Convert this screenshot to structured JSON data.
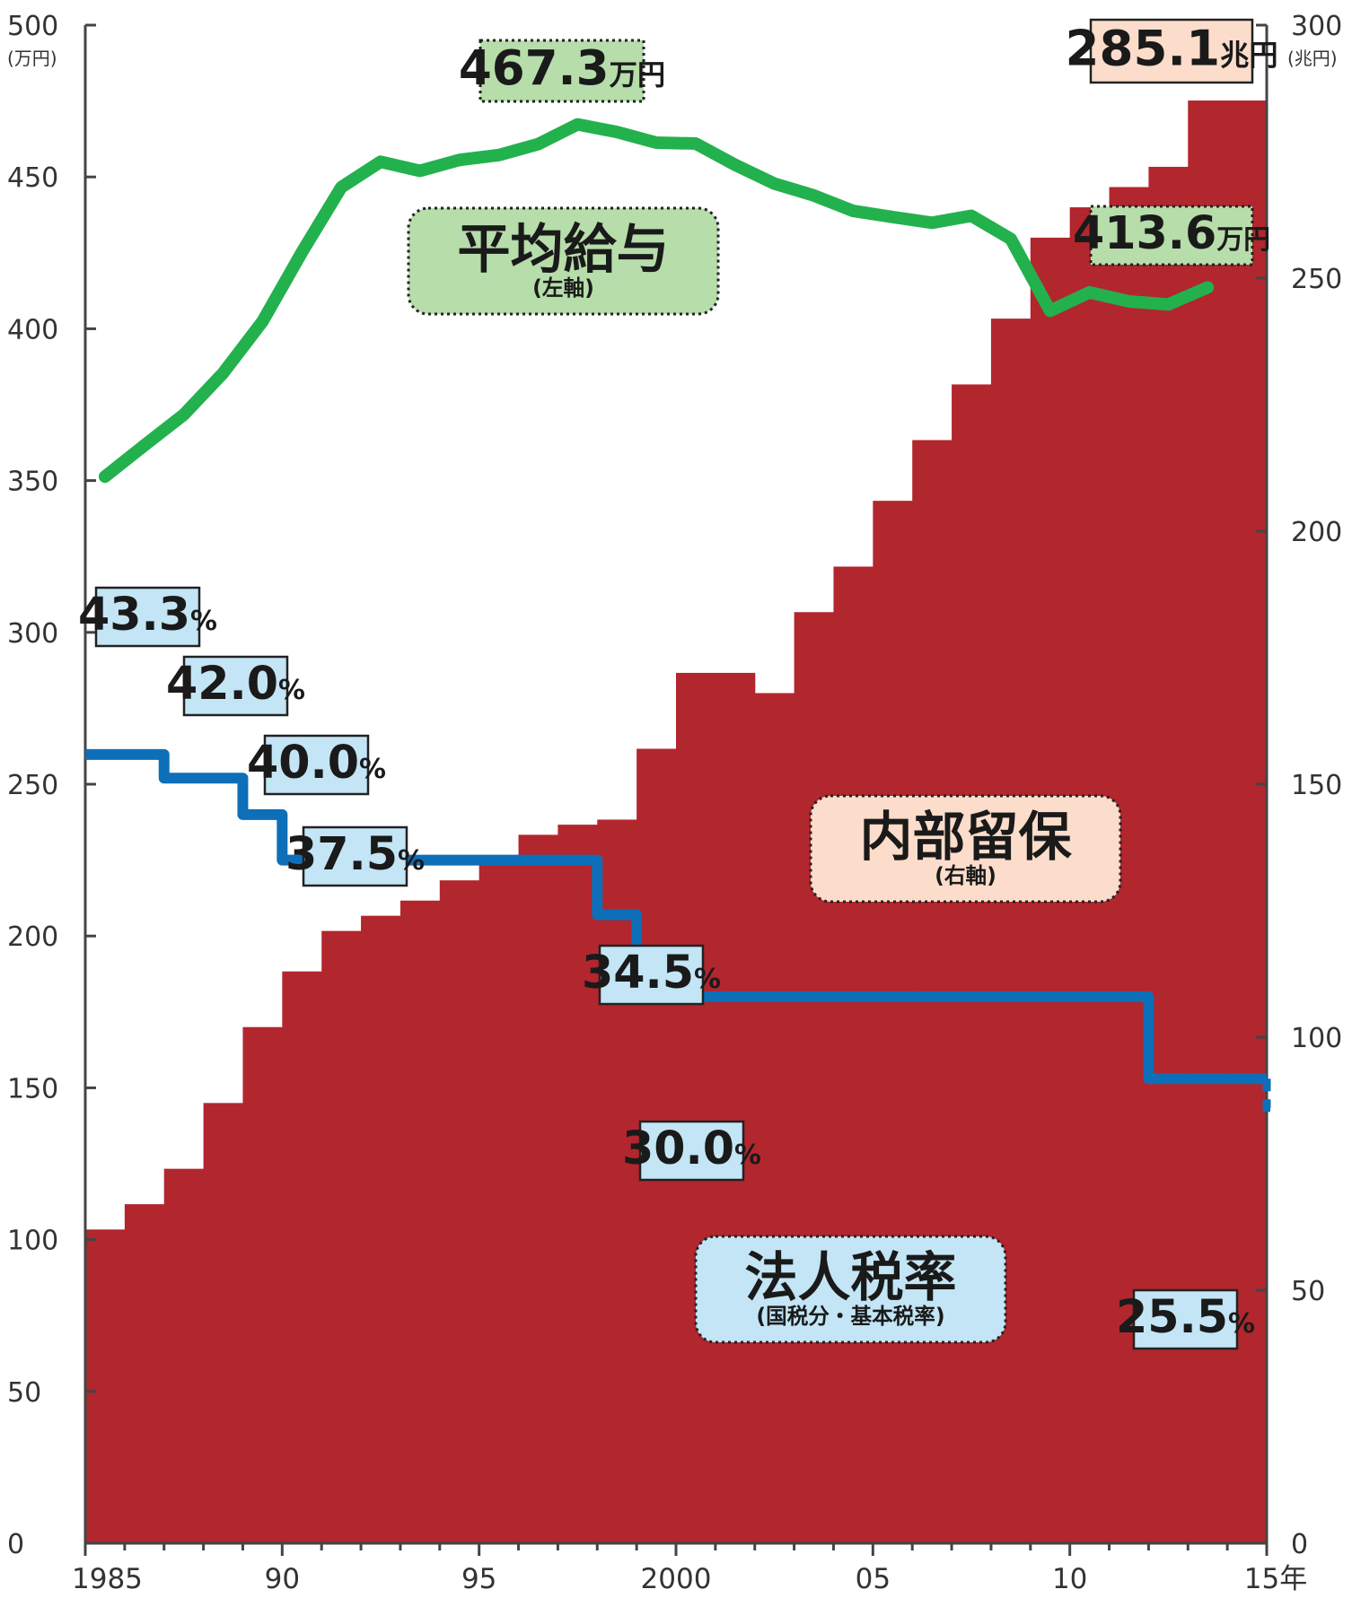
{
  "chart_data": {
    "type": "bar+line",
    "x_axis": {
      "tick_labels": [
        "1985",
        "90",
        "95",
        "2000",
        "05",
        "10",
        "15年"
      ],
      "tick_years": [
        1985,
        1990,
        1995,
        2000,
        2005,
        2010,
        2015
      ],
      "range": [
        1985,
        2015
      ]
    },
    "left_axis": {
      "unit_label": "(万円)",
      "range": [
        0,
        500
      ],
      "ticks": [
        0,
        50,
        100,
        150,
        200,
        250,
        300,
        350,
        400,
        450,
        500
      ]
    },
    "right_axis": {
      "unit_label": "(兆円)",
      "range": [
        0,
        300
      ],
      "ticks": [
        0,
        50,
        100,
        150,
        200,
        250,
        300
      ]
    },
    "series": [
      {
        "name": "内部留保",
        "sublabel": "(右軸)",
        "type": "bar",
        "axis": "right",
        "color": "#b2262e",
        "label_bg": "#fcdcca",
        "years": [
          1985,
          1986,
          1987,
          1988,
          1989,
          1990,
          1991,
          1992,
          1993,
          1994,
          1995,
          1996,
          1997,
          1998,
          1999,
          2000,
          2001,
          2002,
          2003,
          2004,
          2005,
          2006,
          2007,
          2008,
          2009,
          2010,
          2011,
          2012,
          2013,
          2014
        ],
        "values": [
          62,
          67,
          74,
          87,
          102,
          113,
          121,
          124,
          127,
          131,
          134,
          140,
          142,
          143,
          157,
          172,
          172,
          168,
          184,
          193,
          206,
          218,
          229,
          242,
          258,
          264,
          268,
          272,
          285.1,
          285.1
        ],
        "end_label": {
          "value": "285.1",
          "unit": "兆円"
        }
      },
      {
        "name": "平均給与",
        "sublabel": "(左軸)",
        "type": "line",
        "axis": "left",
        "color": "#23b14d",
        "label_bg": "#b6ddaa",
        "years": [
          1985,
          1986,
          1987,
          1988,
          1989,
          1990,
          1991,
          1992,
          1993,
          1994,
          1995,
          1996,
          1997,
          1998,
          1999,
          2000,
          2001,
          2002,
          2003,
          2004,
          2005,
          2006,
          2007,
          2008,
          2009,
          2010,
          2011,
          2012,
          2013
        ],
        "values": [
          351.3,
          361.6,
          371.7,
          385.4,
          402.4,
          425.2,
          446.6,
          455.0,
          452.0,
          455.6,
          457.2,
          460.8,
          467.3,
          464.8,
          461.3,
          461.0,
          454.0,
          447.8,
          443.9,
          438.8,
          436.8,
          434.9,
          437.2,
          429.6,
          405.9,
          412.0,
          409.0,
          408.0,
          413.6
        ],
        "max_label": {
          "value": "467.3",
          "unit": "万円",
          "year": 1997
        },
        "end_label": {
          "value": "413.6",
          "unit": "万円",
          "year": 2013
        }
      },
      {
        "name": "法人税率",
        "sublabel": "(国税分・基本税率)",
        "type": "step",
        "axis": "left",
        "color": "#0d6fb8",
        "label_bg": "#c3e5f5",
        "rate_labels": [
          "43.3",
          "42.0",
          "40.0",
          "37.5",
          "34.5",
          "30.0",
          "25.5"
        ],
        "rate_unit": "%",
        "steps": [
          {
            "from": 1985.0,
            "to": 1987.0,
            "rate": 43.3
          },
          {
            "from": 1987.0,
            "to": 1989.0,
            "rate": 42.0
          },
          {
            "from": 1989.0,
            "to": 1990.0,
            "rate": 40.0
          },
          {
            "from": 1990.0,
            "to": 1998.0,
            "rate": 37.5
          },
          {
            "from": 1998.0,
            "to": 1999.0,
            "rate": 34.5
          },
          {
            "from": 1999.0,
            "to": 2012.0,
            "rate": 30.0
          },
          {
            "from": 2012.0,
            "to": 2015.0,
            "rate": 25.5
          }
        ],
        "projected": {
          "from": 2015.0,
          "to": 2016.0,
          "rate": 23.9
        }
      }
    ]
  }
}
